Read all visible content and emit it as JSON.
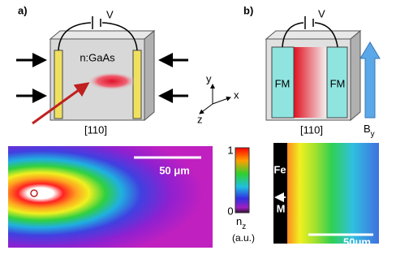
{
  "panel_a": {
    "label": "a)",
    "voltage": "V",
    "material": "n:GaAs",
    "direction": "[110]"
  },
  "panel_b": {
    "label": "b)",
    "voltage": "V",
    "left_contact": "FM",
    "right_contact": "FM",
    "direction": "[110]",
    "field": "B",
    "field_subscript": "y"
  },
  "axes": {
    "y": "y",
    "x": "x",
    "z": "z"
  },
  "image_left": {
    "scale_bar": "50 μm"
  },
  "colorbar": {
    "max": "1",
    "min": "0",
    "quantity": "n",
    "quantity_subscript": "z",
    "unit": "(a.u.)"
  },
  "image_right": {
    "material": "Fe",
    "magnetization": "M",
    "scale_bar": "50μm"
  }
}
